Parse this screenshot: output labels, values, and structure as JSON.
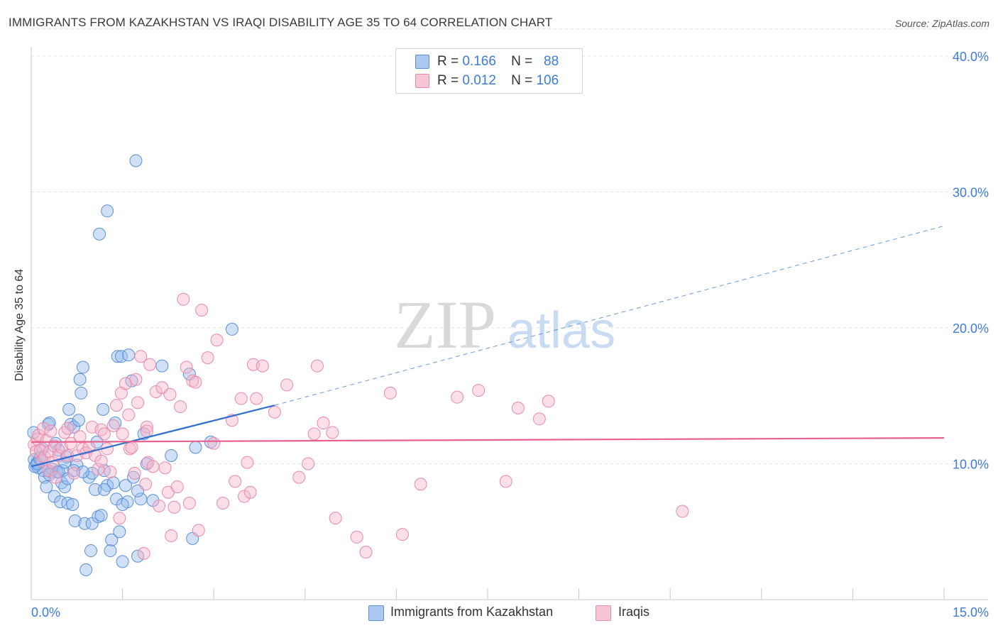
{
  "title": "IMMIGRANTS FROM KAZAKHSTAN VS IRAQI DISABILITY AGE 35 TO 64 CORRELATION CHART",
  "source": "Source: ZipAtlas.com",
  "watermark": {
    "zip": "ZIP",
    "atlas": "atlas"
  },
  "legend": {
    "r_label": "R =",
    "n_label": "N =",
    "series1": {
      "r": "0.166",
      "n": "88"
    },
    "series2": {
      "r": "0.012",
      "n": "106"
    }
  },
  "colors": {
    "blue_fill": "#aac8f0",
    "blue_stroke": "#5b8fd6",
    "blue_line": "#2f6fd1",
    "pink_fill": "#f6bdd0",
    "pink_stroke": "#e88aaa",
    "pink_line": "#e8608c",
    "axis_text": "#3d7bd9"
  },
  "chart_data": {
    "type": "scatter",
    "title": "IMMIGRANTS FROM KAZAKHSTAN VS IRAQI DISABILITY AGE 35 TO 64 CORRELATION CHART",
    "xlabel": "",
    "ylabel": "Disability Age 35 to 64",
    "xlim": [
      0,
      15
    ],
    "ylim": [
      0,
      42
    ],
    "x_tick_labels": [
      "0.0%",
      "15.0%"
    ],
    "y_ticks": [
      10,
      20,
      30,
      40
    ],
    "y_tick_labels": [
      "10.0%",
      "20.0%",
      "30.0%",
      "40.0%"
    ],
    "grid": true,
    "legend_position": "top-center",
    "series": [
      {
        "name": "Immigrants from Kazakhstan",
        "color": "#5b8fd6",
        "trend": {
          "x": [
            0,
            4
          ],
          "y": [
            9.8,
            14.3
          ],
          "extend_to_x": 15,
          "extend_y": 27.5
        },
        "points": [
          [
            0.05,
            10.3
          ],
          [
            0.08,
            9.9
          ],
          [
            0.1,
            10.1
          ],
          [
            0.12,
            9.7
          ],
          [
            0.15,
            10.5
          ],
          [
            0.18,
            11.1
          ],
          [
            0.2,
            9.5
          ],
          [
            0.22,
            9.0
          ],
          [
            0.25,
            8.3
          ],
          [
            0.28,
            12.9
          ],
          [
            0.3,
            13.0
          ],
          [
            0.32,
            9.4
          ],
          [
            0.35,
            9.6
          ],
          [
            0.38,
            7.6
          ],
          [
            0.4,
            11.5
          ],
          [
            0.42,
            9.4
          ],
          [
            0.45,
            11.0
          ],
          [
            0.48,
            7.2
          ],
          [
            0.5,
            8.6
          ],
          [
            0.52,
            9.5
          ],
          [
            0.55,
            8.3
          ],
          [
            0.58,
            10.5
          ],
          [
            0.6,
            7.1
          ],
          [
            0.62,
            14.0
          ],
          [
            0.65,
            12.9
          ],
          [
            0.68,
            7.0
          ],
          [
            0.7,
            12.7
          ],
          [
            0.72,
            5.8
          ],
          [
            0.75,
            9.9
          ],
          [
            0.78,
            13.2
          ],
          [
            0.8,
            16.2
          ],
          [
            0.82,
            15.2
          ],
          [
            0.85,
            17.1
          ],
          [
            0.88,
            5.6
          ],
          [
            0.9,
            2.2
          ],
          [
            0.95,
            9.0
          ],
          [
            1.0,
            5.6
          ],
          [
            1.0,
            9.3
          ],
          [
            0.98,
            3.6
          ],
          [
            1.05,
            8.1
          ],
          [
            1.08,
            11.6
          ],
          [
            1.1,
            6.1
          ],
          [
            1.12,
            26.9
          ],
          [
            1.15,
            6.2
          ],
          [
            1.18,
            14.0
          ],
          [
            1.2,
            9.5
          ],
          [
            1.25,
            8.4
          ],
          [
            1.25,
            28.6
          ],
          [
            1.3,
            3.6
          ],
          [
            1.32,
            4.4
          ],
          [
            1.35,
            8.6
          ],
          [
            1.38,
            13.0
          ],
          [
            1.4,
            7.4
          ],
          [
            1.42,
            17.9
          ],
          [
            1.45,
            5.0
          ],
          [
            1.48,
            17.9
          ],
          [
            1.5,
            2.8
          ],
          [
            1.55,
            8.4
          ],
          [
            1.58,
            7.2
          ],
          [
            1.6,
            18.0
          ],
          [
            1.65,
            16.1
          ],
          [
            1.68,
            9.0
          ],
          [
            1.72,
            32.3
          ],
          [
            1.75,
            3.2
          ],
          [
            1.8,
            7.4
          ],
          [
            1.85,
            12.2
          ],
          [
            1.9,
            10.0
          ],
          [
            2.15,
            17.2
          ],
          [
            2.3,
            10.6
          ],
          [
            2.6,
            16.6
          ],
          [
            2.65,
            4.5
          ],
          [
            2.7,
            11.2
          ],
          [
            2.95,
            11.6
          ],
          [
            3.3,
            19.9
          ],
          [
            0.04,
            12.3
          ],
          [
            0.06,
            9.8
          ],
          [
            0.1,
            10.0
          ],
          [
            0.14,
            10.4
          ],
          [
            0.3,
            9.2
          ],
          [
            0.45,
            9.4
          ],
          [
            0.55,
            10.1
          ],
          [
            0.6,
            8.9
          ],
          [
            0.7,
            9.5
          ],
          [
            0.85,
            9.4
          ],
          [
            1.2,
            8.1
          ],
          [
            1.5,
            7.0
          ],
          [
            1.75,
            8.0
          ],
          [
            2.0,
            7.3
          ]
        ]
      },
      {
        "name": "Iraqis",
        "color": "#e88aaa",
        "trend": {
          "x": [
            0,
            15
          ],
          "y": [
            11.6,
            11.9
          ]
        },
        "points": [
          [
            0.05,
            11.4
          ],
          [
            0.08,
            10.9
          ],
          [
            0.1,
            11.8
          ],
          [
            0.12,
            12.1
          ],
          [
            0.15,
            11.0
          ],
          [
            0.18,
            10.2
          ],
          [
            0.2,
            12.6
          ],
          [
            0.22,
            10.5
          ],
          [
            0.25,
            11.7
          ],
          [
            0.28,
            9.5
          ],
          [
            0.3,
            10.9
          ],
          [
            0.32,
            12.4
          ],
          [
            0.35,
            10.1
          ],
          [
            0.38,
            11.3
          ],
          [
            0.4,
            9.0
          ],
          [
            0.45,
            10.6
          ],
          [
            0.5,
            11.2
          ],
          [
            0.55,
            12.3
          ],
          [
            0.6,
            10.6
          ],
          [
            0.65,
            11.5
          ],
          [
            0.7,
            9.3
          ],
          [
            0.75,
            10.6
          ],
          [
            0.8,
            12.0
          ],
          [
            0.85,
            11.1
          ],
          [
            0.9,
            10.8
          ],
          [
            0.95,
            11.2
          ],
          [
            1.0,
            12.7
          ],
          [
            1.05,
            10.6
          ],
          [
            1.1,
            9.6
          ],
          [
            1.15,
            12.5
          ],
          [
            1.2,
            12.2
          ],
          [
            1.25,
            11.1
          ],
          [
            1.3,
            9.4
          ],
          [
            1.35,
            12.8
          ],
          [
            1.4,
            14.3
          ],
          [
            1.45,
            6.0
          ],
          [
            1.48,
            15.2
          ],
          [
            1.5,
            12.2
          ],
          [
            1.55,
            15.9
          ],
          [
            1.6,
            13.6
          ],
          [
            1.62,
            11.1
          ],
          [
            1.65,
            11.2
          ],
          [
            1.7,
            9.3
          ],
          [
            1.72,
            16.2
          ],
          [
            1.75,
            14.5
          ],
          [
            1.8,
            17.9
          ],
          [
            1.85,
            3.4
          ],
          [
            1.88,
            8.5
          ],
          [
            1.9,
            12.7
          ],
          [
            1.92,
            10.1
          ],
          [
            1.95,
            17.3
          ],
          [
            2.0,
            9.8
          ],
          [
            2.05,
            15.3
          ],
          [
            2.1,
            6.9
          ],
          [
            2.15,
            15.6
          ],
          [
            2.2,
            9.7
          ],
          [
            2.25,
            7.9
          ],
          [
            2.28,
            15.1
          ],
          [
            2.3,
            4.7
          ],
          [
            2.35,
            6.8
          ],
          [
            2.4,
            8.3
          ],
          [
            2.45,
            14.2
          ],
          [
            2.5,
            22.1
          ],
          [
            2.55,
            17.1
          ],
          [
            2.6,
            7.1
          ],
          [
            2.65,
            16.1
          ],
          [
            2.7,
            16.0
          ],
          [
            2.75,
            5.1
          ],
          [
            2.8,
            21.3
          ],
          [
            2.9,
            17.8
          ],
          [
            3.0,
            11.5
          ],
          [
            3.05,
            19.1
          ],
          [
            3.15,
            7.1
          ],
          [
            3.3,
            13.2
          ],
          [
            3.35,
            8.7
          ],
          [
            3.45,
            14.8
          ],
          [
            3.5,
            7.6
          ],
          [
            3.55,
            10.1
          ],
          [
            3.6,
            7.9
          ],
          [
            3.65,
            17.3
          ],
          [
            3.7,
            14.8
          ],
          [
            3.8,
            17.2
          ],
          [
            4.0,
            13.8
          ],
          [
            4.2,
            15.8
          ],
          [
            4.4,
            9.0
          ],
          [
            4.55,
            10.0
          ],
          [
            4.65,
            12.2
          ],
          [
            4.7,
            17.2
          ],
          [
            4.8,
            13.0
          ],
          [
            4.95,
            12.3
          ],
          [
            5.0,
            6.0
          ],
          [
            5.35,
            4.6
          ],
          [
            5.5,
            3.5
          ],
          [
            5.9,
            15.2
          ],
          [
            6.1,
            4.8
          ],
          [
            6.4,
            8.5
          ],
          [
            7.0,
            14.9
          ],
          [
            7.35,
            15.4
          ],
          [
            7.8,
            8.7
          ],
          [
            8.0,
            14.1
          ],
          [
            8.35,
            13.3
          ],
          [
            8.5,
            14.6
          ],
          [
            10.7,
            6.5
          ],
          [
            0.6,
            12.6
          ],
          [
            1.15,
            10.2
          ],
          [
            1.9,
            12.4
          ]
        ]
      }
    ]
  },
  "axis": {
    "x_left": "0.0%",
    "x_right": "15.0%"
  }
}
